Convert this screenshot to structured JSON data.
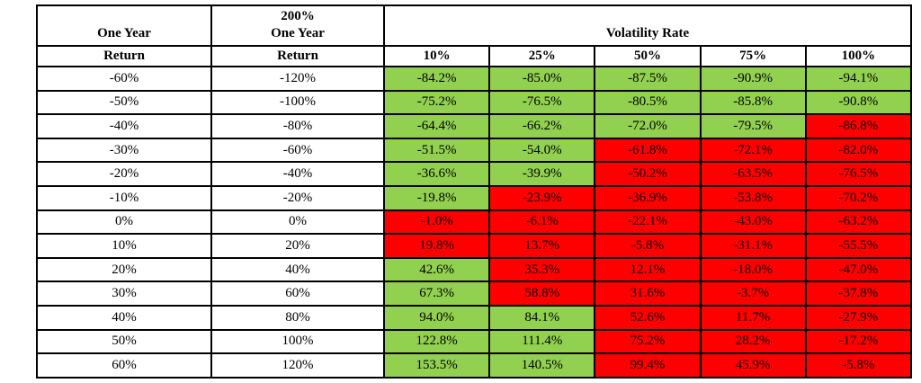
{
  "table": {
    "colors": {
      "green": "#92D050",
      "red": "#FF0000",
      "border": "#000000",
      "cell_text": "#000000",
      "header_bg": "#FFFFFF"
    },
    "header": {
      "col1_line1": "One Year",
      "col1_line2": "Return",
      "col2_line1": "200%",
      "col2_line2": "One Year",
      "col2_line3": "Return",
      "vol_title": "Volatility Rate",
      "vol_cols": [
        "10%",
        "25%",
        "50%",
        "75%",
        "100%"
      ]
    },
    "rows": [
      {
        "one_year_return": "-60%",
        "leveraged_return": "-120%",
        "values": [
          "-84.2%",
          "-85.0%",
          "-87.5%",
          "-90.9%",
          "-94.1%"
        ],
        "colors": [
          "green",
          "green",
          "green",
          "green",
          "green"
        ]
      },
      {
        "one_year_return": "-50%",
        "leveraged_return": "-100%",
        "values": [
          "-75.2%",
          "-76.5%",
          "-80.5%",
          "-85.8%",
          "-90.8%"
        ],
        "colors": [
          "green",
          "green",
          "green",
          "green",
          "green"
        ]
      },
      {
        "one_year_return": "-40%",
        "leveraged_return": "-80%",
        "values": [
          "-64.4%",
          "-66.2%",
          "-72.0%",
          "-79.5%",
          "-86.8%"
        ],
        "colors": [
          "green",
          "green",
          "green",
          "green",
          "red"
        ]
      },
      {
        "one_year_return": "-30%",
        "leveraged_return": "-60%",
        "values": [
          "-51.5%",
          "-54.0%",
          "-61.8%",
          "-72.1%",
          "-82.0%"
        ],
        "colors": [
          "green",
          "green",
          "red",
          "red",
          "red"
        ]
      },
      {
        "one_year_return": "-20%",
        "leveraged_return": "-40%",
        "values": [
          "-36.6%",
          "-39.9%",
          "-50.2%",
          "-63.5%",
          "-76.5%"
        ],
        "colors": [
          "green",
          "green",
          "red",
          "red",
          "red"
        ]
      },
      {
        "one_year_return": "-10%",
        "leveraged_return": "-20%",
        "values": [
          "-19.8%",
          "-23.9%",
          "-36.9%",
          "-53.8%",
          "-70.2%"
        ],
        "colors": [
          "green",
          "red",
          "red",
          "red",
          "red"
        ]
      },
      {
        "one_year_return": "0%",
        "leveraged_return": "0%",
        "values": [
          "-1.0%",
          "-6.1%",
          "-22.1%",
          "-43.0%",
          "-63.2%"
        ],
        "colors": [
          "red",
          "red",
          "red",
          "red",
          "red"
        ]
      },
      {
        "one_year_return": "10%",
        "leveraged_return": "20%",
        "values": [
          "19.8%",
          "13.7%",
          "-5.8%",
          "-31.1%",
          "-55.5%"
        ],
        "colors": [
          "red",
          "red",
          "red",
          "red",
          "red"
        ]
      },
      {
        "one_year_return": "20%",
        "leveraged_return": "40%",
        "values": [
          "42.6%",
          "35.3%",
          "12.1%",
          "-18.0%",
          "-47.0%"
        ],
        "colors": [
          "green",
          "red",
          "red",
          "red",
          "red"
        ]
      },
      {
        "one_year_return": "30%",
        "leveraged_return": "60%",
        "values": [
          "67.3%",
          "58.8%",
          "31.6%",
          "-3.7%",
          "-37.8%"
        ],
        "colors": [
          "green",
          "red",
          "red",
          "red",
          "red"
        ]
      },
      {
        "one_year_return": "40%",
        "leveraged_return": "80%",
        "values": [
          "94.0%",
          "84.1%",
          "52.6%",
          "11.7%",
          "-27.9%"
        ],
        "colors": [
          "green",
          "green",
          "red",
          "red",
          "red"
        ]
      },
      {
        "one_year_return": "50%",
        "leveraged_return": "100%",
        "values": [
          "122.8%",
          "111.4%",
          "75.2%",
          "28.2%",
          "-17.2%"
        ],
        "colors": [
          "green",
          "green",
          "red",
          "red",
          "red"
        ]
      },
      {
        "one_year_return": "60%",
        "leveraged_return": "120%",
        "values": [
          "153.5%",
          "140.5%",
          "99.4%",
          "45.9%",
          "-5.8%"
        ],
        "colors": [
          "green",
          "green",
          "red",
          "red",
          "red"
        ]
      }
    ]
  }
}
